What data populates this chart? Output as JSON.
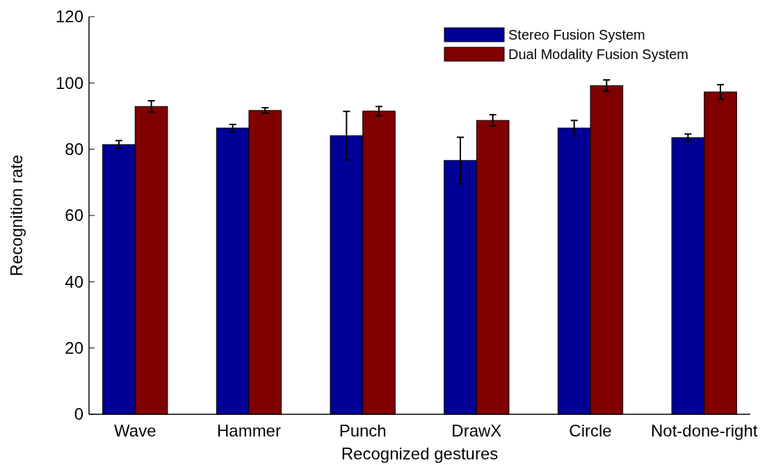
{
  "chart_data": {
    "type": "bar",
    "xlabel": "Recognized gestures",
    "ylabel": "Recognition rate",
    "categories": [
      "Wave",
      "Hammer",
      "Punch",
      "DrawX",
      "Circle",
      "Not-done-right"
    ],
    "series": [
      {
        "name": "Stereo Fusion System",
        "color": "#000096",
        "values": [
          81.4,
          86.4,
          84.1,
          76.6,
          86.4,
          83.5
        ],
        "errors": [
          1.2,
          1.1,
          7.3,
          7,
          2.3,
          1.1
        ]
      },
      {
        "name": "Dual Modality Fusion System",
        "color": "#800000",
        "values": [
          92.9,
          91.7,
          91.5,
          88.7,
          99.2,
          97.3
        ],
        "errors": [
          1.7,
          0.8,
          1.4,
          1.7,
          1.7,
          2.2
        ]
      }
    ],
    "ylim": [
      0,
      120
    ],
    "yticks": [
      0,
      20,
      40,
      60,
      80,
      100,
      120
    ],
    "grid": false,
    "legend": "top right"
  }
}
